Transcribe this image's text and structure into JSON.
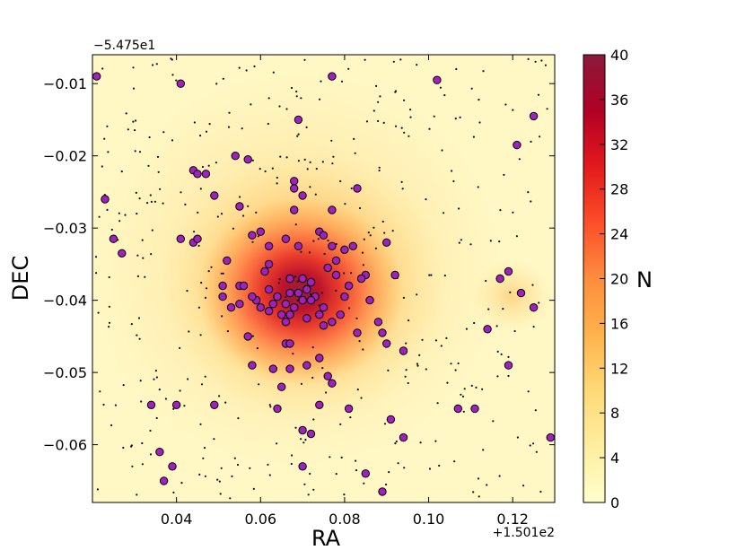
{
  "chart_data": {
    "type": "scatter",
    "title": "",
    "xlabel": "RA",
    "ylabel": "DEC",
    "x_offset_label": "+1.501e2",
    "y_offset_label": "−5.475e1",
    "xlim": [
      0.02,
      0.13
    ],
    "ylim": [
      -0.068,
      -0.006
    ],
    "x_ticks": [
      {
        "value": 0.04,
        "label": "0.04"
      },
      {
        "value": 0.06,
        "label": "0.06"
      },
      {
        "value": 0.08,
        "label": "0.08"
      },
      {
        "value": 0.1,
        "label": "0.10"
      },
      {
        "value": 0.12,
        "label": "0.12"
      }
    ],
    "y_ticks": [
      {
        "value": -0.01,
        "label": "−0.01"
      },
      {
        "value": -0.02,
        "label": "−0.02"
      },
      {
        "value": -0.03,
        "label": "−0.03"
      },
      {
        "value": -0.04,
        "label": "−0.04"
      },
      {
        "value": -0.05,
        "label": "−0.05"
      },
      {
        "value": -0.06,
        "label": "−0.06"
      }
    ],
    "density_background": {
      "colormap": [
        "#ffffcc",
        "#ffeda0",
        "#fed976",
        "#feb24c",
        "#fd8d3c",
        "#fc4e2a",
        "#e31a1c",
        "#b10026",
        "#8b1a3a"
      ],
      "peak": {
        "x": 0.069,
        "y": -0.038,
        "value": 40
      }
    },
    "colorbar": {
      "label": "N",
      "min": 0,
      "max": 40,
      "ticks": [
        "0",
        "4",
        "8",
        "12",
        "16",
        "20",
        "24",
        "28",
        "32",
        "36",
        "40"
      ]
    },
    "series": [
      {
        "marker": "circle",
        "color": "#a020c0",
        "edge_color": "#000000",
        "points": [
          [
            0.021,
            -0.009
          ],
          [
            0.023,
            -0.026
          ],
          [
            0.025,
            -0.0315
          ],
          [
            0.027,
            -0.0335
          ],
          [
            0.041,
            -0.01
          ],
          [
            0.044,
            -0.022
          ],
          [
            0.045,
            -0.0225
          ],
          [
            0.047,
            -0.0225
          ],
          [
            0.054,
            -0.02
          ],
          [
            0.057,
            -0.0205
          ],
          [
            0.069,
            -0.015
          ],
          [
            0.077,
            -0.009
          ],
          [
            0.102,
            -0.0095
          ],
          [
            0.125,
            -0.0145
          ],
          [
            0.121,
            -0.0185
          ],
          [
            0.083,
            -0.0245
          ],
          [
            0.049,
            -0.0255
          ],
          [
            0.055,
            -0.027
          ],
          [
            0.068,
            -0.0235
          ],
          [
            0.068,
            -0.0245
          ],
          [
            0.07,
            -0.0255
          ],
          [
            0.068,
            -0.0275
          ],
          [
            0.077,
            -0.0275
          ],
          [
            0.041,
            -0.0315
          ],
          [
            0.044,
            -0.032
          ],
          [
            0.045,
            -0.0315
          ],
          [
            0.058,
            -0.031
          ],
          [
            0.06,
            -0.0305
          ],
          [
            0.062,
            -0.0325
          ],
          [
            0.066,
            -0.0315
          ],
          [
            0.074,
            -0.0305
          ],
          [
            0.075,
            -0.031
          ],
          [
            0.077,
            -0.0325
          ],
          [
            0.08,
            -0.033
          ],
          [
            0.082,
            -0.0325
          ],
          [
            0.09,
            -0.032
          ],
          [
            0.052,
            -0.0345
          ],
          [
            0.078,
            -0.0345
          ],
          [
            0.062,
            -0.035
          ],
          [
            0.076,
            -0.0355
          ],
          [
            0.085,
            -0.0365
          ],
          [
            0.051,
            -0.038
          ],
          [
            0.055,
            -0.038
          ],
          [
            0.062,
            -0.0385
          ],
          [
            0.067,
            -0.037
          ],
          [
            0.07,
            -0.037
          ],
          [
            0.072,
            -0.0375
          ],
          [
            0.064,
            -0.0395
          ],
          [
            0.067,
            -0.039
          ],
          [
            0.069,
            -0.039
          ],
          [
            0.071,
            -0.0385
          ],
          [
            0.073,
            -0.0395
          ],
          [
            0.081,
            -0.038
          ],
          [
            0.084,
            -0.037
          ],
          [
            0.092,
            -0.0365
          ],
          [
            0.051,
            -0.0395
          ],
          [
            0.059,
            -0.04
          ],
          [
            0.063,
            -0.0405
          ],
          [
            0.066,
            -0.0405
          ],
          [
            0.068,
            -0.041
          ],
          [
            0.07,
            -0.04
          ],
          [
            0.072,
            -0.04
          ],
          [
            0.075,
            -0.041
          ],
          [
            0.086,
            -0.04
          ],
          [
            0.053,
            -0.041
          ],
          [
            0.055,
            -0.0405
          ],
          [
            0.06,
            -0.041
          ],
          [
            0.065,
            -0.042
          ],
          [
            0.067,
            -0.042
          ],
          [
            0.071,
            -0.0425
          ],
          [
            0.074,
            -0.042
          ],
          [
            0.079,
            -0.042
          ],
          [
            0.062,
            -0.0415
          ],
          [
            0.066,
            -0.043
          ],
          [
            0.077,
            -0.043
          ],
          [
            0.075,
            -0.0435
          ],
          [
            0.088,
            -0.043
          ],
          [
            0.083,
            -0.0445
          ],
          [
            0.089,
            -0.0445
          ],
          [
            0.057,
            -0.045
          ],
          [
            0.066,
            -0.046
          ],
          [
            0.067,
            -0.046
          ],
          [
            0.09,
            -0.046
          ],
          [
            0.094,
            -0.047
          ],
          [
            0.074,
            -0.048
          ],
          [
            0.058,
            -0.049
          ],
          [
            0.063,
            -0.0495
          ],
          [
            0.067,
            -0.0495
          ],
          [
            0.071,
            -0.049
          ],
          [
            0.076,
            -0.0505
          ],
          [
            0.065,
            -0.052
          ],
          [
            0.077,
            -0.0515
          ],
          [
            0.04,
            -0.0545
          ],
          [
            0.034,
            -0.0545
          ],
          [
            0.049,
            -0.0545
          ],
          [
            0.064,
            -0.055
          ],
          [
            0.074,
            -0.0545
          ],
          [
            0.081,
            -0.055
          ],
          [
            0.107,
            -0.055
          ],
          [
            0.111,
            -0.055
          ],
          [
            0.091,
            -0.0565
          ],
          [
            0.07,
            -0.058
          ],
          [
            0.072,
            -0.0585
          ],
          [
            0.094,
            -0.059
          ],
          [
            0.129,
            -0.059
          ],
          [
            0.036,
            -0.061
          ],
          [
            0.039,
            -0.063
          ],
          [
            0.07,
            -0.063
          ],
          [
            0.085,
            -0.064
          ],
          [
            0.037,
            -0.065
          ],
          [
            0.089,
            -0.0665
          ],
          [
            0.117,
            -0.037
          ],
          [
            0.119,
            -0.036
          ],
          [
            0.122,
            -0.039
          ],
          [
            0.125,
            -0.041
          ],
          [
            0.114,
            -0.044
          ],
          [
            0.119,
            -0.049
          ],
          [
            0.056,
            -0.038
          ],
          [
            0.061,
            -0.036
          ],
          [
            0.078,
            -0.0365
          ],
          [
            0.08,
            -0.0395
          ],
          [
            0.069,
            -0.0325
          ],
          [
            0.058,
            -0.0395
          ]
        ]
      }
    ]
  }
}
